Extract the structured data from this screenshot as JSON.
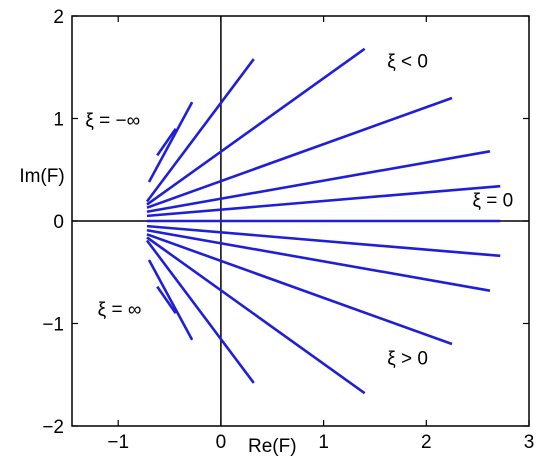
{
  "chart_data": {
    "type": "line",
    "title": "",
    "xlabel": "Re(F)",
    "ylabel": "Im(F)",
    "xlim": [
      -1.45,
      3
    ],
    "ylim": [
      -2,
      2
    ],
    "xticks": [
      -1,
      0,
      1,
      2,
      3
    ],
    "yticks": [
      -2,
      -1,
      0,
      1,
      2
    ],
    "xtick_labels": [
      "−1",
      "0",
      "1",
      "2",
      "3"
    ],
    "ytick_labels": [
      "−2",
      "−1",
      "0",
      "1",
      "2"
    ],
    "grid": false,
    "line_color": "#1f1fd8",
    "axis_color": "#000000",
    "series": [
      {
        "x": [
          -0.72,
          2.72
        ],
        "y": [
          0.0,
          0.0
        ]
      },
      {
        "x": [
          -0.72,
          2.72
        ],
        "y": [
          0.05,
          0.34
        ]
      },
      {
        "x": [
          -0.72,
          2.62
        ],
        "y": [
          0.09,
          0.68
        ]
      },
      {
        "x": [
          -0.72,
          2.25
        ],
        "y": [
          0.13,
          1.2
        ]
      },
      {
        "x": [
          -0.72,
          1.4
        ],
        "y": [
          0.16,
          1.68
        ]
      },
      {
        "x": [
          -0.72,
          0.32
        ],
        "y": [
          0.19,
          1.58
        ]
      },
      {
        "x": [
          -0.7,
          -0.28
        ],
        "y": [
          0.38,
          1.16
        ]
      },
      {
        "x": [
          -0.62,
          -0.44
        ],
        "y": [
          0.64,
          0.9
        ]
      },
      {
        "x": [
          -0.72,
          2.72
        ],
        "y": [
          -0.05,
          -0.34
        ]
      },
      {
        "x": [
          -0.72,
          2.62
        ],
        "y": [
          -0.09,
          -0.68
        ]
      },
      {
        "x": [
          -0.72,
          2.25
        ],
        "y": [
          -0.13,
          -1.2
        ]
      },
      {
        "x": [
          -0.72,
          1.4
        ],
        "y": [
          -0.16,
          -1.68
        ]
      },
      {
        "x": [
          -0.72,
          0.32
        ],
        "y": [
          -0.19,
          -1.58
        ]
      },
      {
        "x": [
          -0.7,
          -0.28
        ],
        "y": [
          -0.38,
          -1.16
        ]
      },
      {
        "x": [
          -0.62,
          -0.44
        ],
        "y": [
          -0.64,
          -0.9
        ]
      }
    ],
    "annotations": [
      {
        "text": "ξ < 0",
        "x": 1.62,
        "y": 1.5
      },
      {
        "text": "ξ = −∞",
        "x": -1.32,
        "y": 0.92
      },
      {
        "text": "ξ = 0",
        "x": 2.45,
        "y": 0.14
      },
      {
        "text": "ξ = ∞",
        "x": -1.2,
        "y": -0.92
      },
      {
        "text": "ξ > 0",
        "x": 1.62,
        "y": -1.4
      }
    ]
  }
}
